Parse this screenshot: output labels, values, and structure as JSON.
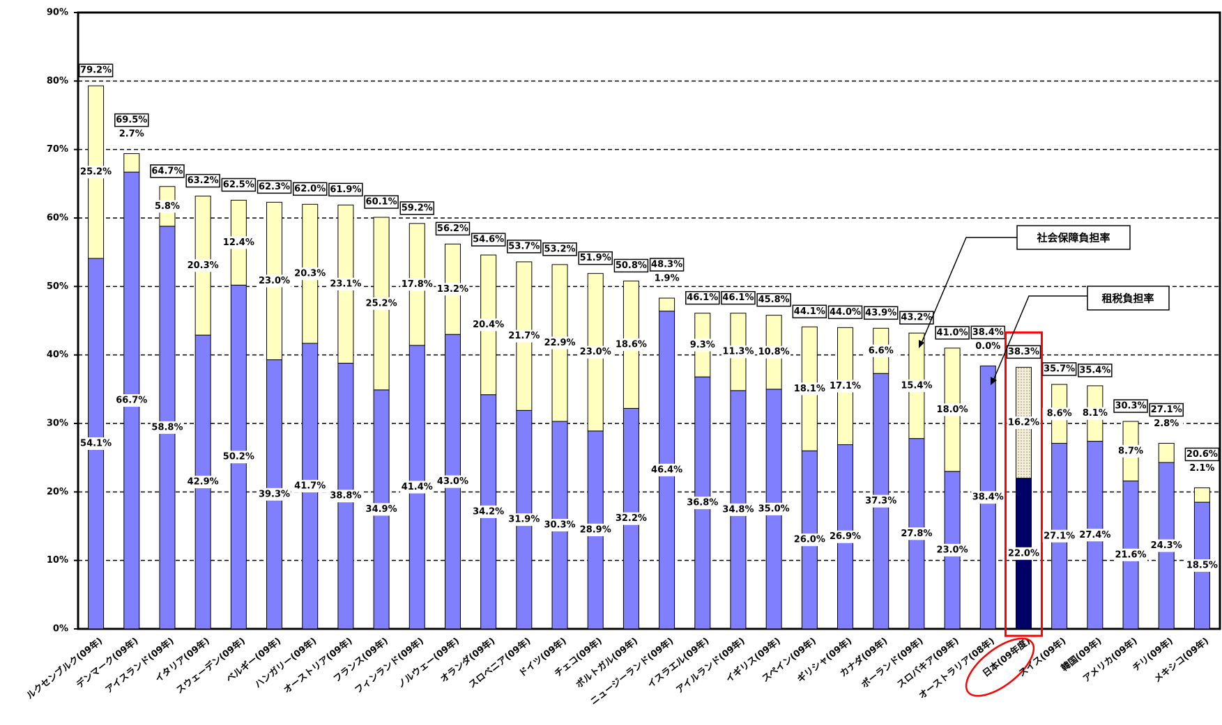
{
  "chart_data": {
    "type": "stacked_bar",
    "categories": [
      "ルクセンブルク(09年)",
      "デンマーク(09年)",
      "アイスランド(09年)",
      "イタリア(09年)",
      "スウェーデン(09年)",
      "ベルギー(09年)",
      "ハンガリー(09年)",
      "オーストリア(09年)",
      "フランス(09年)",
      "フィンランド(09年)",
      "ノルウェー(09年)",
      "オランダ(09年)",
      "スロベニア(09年)",
      "ドイツ(09年)",
      "チェコ(09年)",
      "ポルトガル(09年)",
      "ニュージーランド(09年)",
      "イスラエル(09年)",
      "アイルランド(09年)",
      "イギリス(09年)",
      "スペイン(09年)",
      "ギリシャ(09年)",
      "カナダ(09年)",
      "ポーランド(09年)",
      "スロバキア(09年)",
      "オーストラリア(08年)",
      "日本(09年度)",
      "スイス(09年)",
      "韓国(09年)",
      "アメリカ(09年)",
      "チリ(09年)",
      "メキシコ(09年)"
    ],
    "series": [
      {
        "name": "租税負担率",
        "color": "#8080ff",
        "values": [
          54.1,
          66.7,
          58.8,
          42.9,
          50.2,
          39.3,
          41.7,
          38.8,
          34.9,
          41.4,
          43.0,
          34.2,
          31.9,
          30.3,
          28.9,
          32.2,
          46.4,
          36.8,
          34.8,
          35.0,
          26.0,
          26.9,
          37.3,
          27.8,
          23.0,
          38.4,
          22.0,
          27.1,
          27.4,
          21.6,
          24.3,
          18.5
        ],
        "value_labels": [
          "54.1%",
          "66.7%",
          "58.8%",
          "42.9%",
          "50.2%",
          "39.3%",
          "41.7%",
          "38.8%",
          "34.9%",
          "41.4%",
          "43.0%",
          "34.2%",
          "31.9%",
          "30.3%",
          "28.9%",
          "32.2%",
          "46.4%",
          "36.8%",
          "34.8%",
          "35.0%",
          "26.0%",
          "26.9%",
          "37.3%",
          "27.8%",
          "23.0%",
          "38.4%",
          "22.0%",
          "27.1%",
          "27.4%",
          "21.6%",
          "24.3%",
          "18.5%"
        ]
      },
      {
        "name": "社会保障負担率",
        "color": "#ffffc0",
        "values": [
          25.2,
          2.7,
          5.8,
          20.3,
          12.4,
          23.0,
          20.3,
          23.1,
          25.2,
          17.8,
          13.2,
          20.4,
          21.7,
          22.9,
          23.0,
          18.6,
          1.9,
          9.3,
          11.3,
          10.8,
          18.1,
          17.1,
          6.6,
          15.4,
          18.0,
          0.0,
          16.2,
          8.6,
          8.1,
          8.7,
          2.8,
          2.1
        ],
        "value_labels": [
          "25.2%",
          "2.7%",
          "5.8%",
          "20.3%",
          "12.4%",
          "23.0%",
          "20.3%",
          "23.1%",
          "25.2%",
          "17.8%",
          "13.2%",
          "20.4%",
          "21.7%",
          "22.9%",
          "23.0%",
          "18.6%",
          "1.9%",
          "9.3%",
          "11.3%",
          "10.8%",
          "18.1%",
          "17.1%",
          "6.6%",
          "15.4%",
          "18.0%",
          "0.0%",
          "16.2%",
          "8.6%",
          "8.1%",
          "8.7%",
          "2.8%",
          "2.1%"
        ]
      }
    ],
    "total_labels": [
      "79.2%",
      "69.5%",
      "64.7%",
      "63.2%",
      "62.5%",
      "62.3%",
      "62.0%",
      "61.9%",
      "60.1%",
      "59.2%",
      "56.2%",
      "54.6%",
      "53.7%",
      "53.2%",
      "51.9%",
      "50.8%",
      "48.3%",
      "46.1%",
      "46.1%",
      "45.8%",
      "44.1%",
      "44.0%",
      "43.9%",
      "43.2%",
      "41.0%",
      "38.4%",
      "38.3%",
      "35.7%",
      "35.4%",
      "30.3%",
      "27.1%",
      "20.6%"
    ],
    "highlight": {
      "index": 26,
      "tax_color": "#000066",
      "frame_color": "#ff0000"
    },
    "ylim": [
      0,
      90
    ],
    "yticks": [
      {
        "value": 0,
        "label": "0%"
      },
      {
        "value": 10,
        "label": "10%"
      },
      {
        "value": 20,
        "label": "20%"
      },
      {
        "value": 30,
        "label": "30%"
      },
      {
        "value": 40,
        "label": "40%"
      },
      {
        "value": 50,
        "label": "50%"
      },
      {
        "value": 60,
        "label": "60%"
      },
      {
        "value": 70,
        "label": "70%"
      },
      {
        "value": 80,
        "label": "80%"
      },
      {
        "value": 90,
        "label": "90%"
      }
    ],
    "grid": true,
    "annotations": [
      "社会保障負担率",
      "租税負担率"
    ]
  }
}
